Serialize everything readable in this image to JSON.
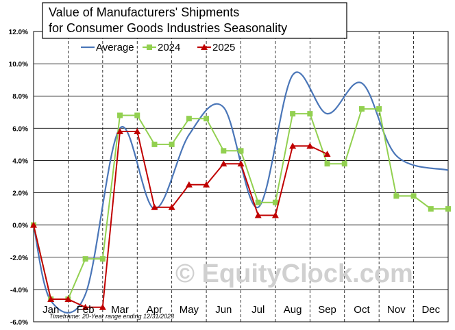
{
  "chart_data": {
    "type": "line",
    "title_lines": [
      "Value of Manufacturers'  Shipments",
      "for Consumer  Goods Industries  Seasonality"
    ],
    "xlabel": "",
    "ylabel": "",
    "categories": [
      "Jan",
      "Feb",
      "Mar",
      "Apr",
      "May",
      "Jun",
      "Jul",
      "Aug",
      "Sep",
      "Oct",
      "Nov",
      "Dec"
    ],
    "y_ticks": [
      "12.0%",
      "10.0%",
      "8.0%",
      "6.0%",
      "4.0%",
      "2.0%",
      "0.0%",
      "-2.0%",
      "-4.0%",
      "-6.0%"
    ],
    "ylim": [
      -6,
      12
    ],
    "grid": {
      "horizontal": true,
      "vertical_month_separators": true
    },
    "legend_placement": "top",
    "series": [
      {
        "name": "Average",
        "color": "#4a76b8",
        "marker": "none",
        "x": [
          0,
          0.5,
          1.5,
          2.5,
          3.5,
          4.5,
          5.5,
          6.5,
          7.5,
          8.5,
          9.5,
          10.5,
          12
        ],
        "values": [
          0,
          -4.7,
          -4.3,
          6.0,
          1.0,
          5.6,
          7.3,
          1.1,
          9.3,
          6.9,
          8.8,
          4.3,
          3.4
        ]
      },
      {
        "name": "2024",
        "color": "#92d050",
        "marker": "square",
        "x": [
          0,
          0.5,
          1,
          1.5,
          2,
          2.5,
          3,
          3.5,
          4,
          4.5,
          5,
          5.5,
          6,
          6.5,
          7,
          7.5,
          8,
          8.5,
          9,
          9.5,
          10,
          10.5,
          11,
          11.5,
          12
        ],
        "values": [
          0,
          -4.6,
          -4.6,
          -2.1,
          -2.1,
          6.8,
          6.8,
          5.0,
          5.0,
          6.6,
          6.6,
          4.6,
          4.6,
          1.4,
          1.4,
          6.9,
          6.9,
          3.8,
          3.8,
          7.2,
          7.2,
          1.8,
          1.8,
          1.0,
          1.0
        ]
      },
      {
        "name": "2025",
        "color": "#c00000",
        "marker": "triangle",
        "x": [
          0,
          0.5,
          1,
          1.5,
          2,
          2.5,
          3,
          3.5,
          4,
          4.5,
          5,
          5.5,
          6,
          6.5,
          7,
          7.5,
          8,
          8.5
        ],
        "values": [
          0,
          -4.6,
          -4.6,
          -5.1,
          -5.1,
          5.8,
          5.8,
          1.1,
          1.1,
          2.5,
          2.5,
          3.8,
          3.8,
          0.6,
          0.6,
          4.9,
          4.9,
          4.4
        ]
      }
    ],
    "footnote": "Timeframe: 20-Year range ending 12/31/2023",
    "watermark": "© EquityClock.com"
  }
}
